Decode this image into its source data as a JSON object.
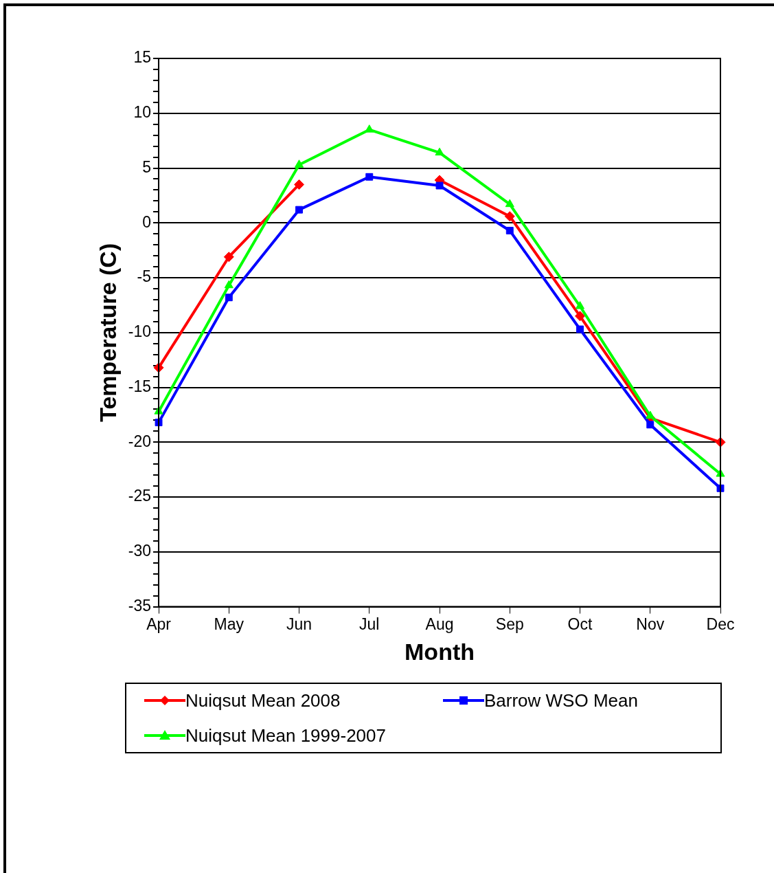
{
  "chart_data": {
    "type": "line",
    "xlabel": "Month",
    "ylabel": "Temperature (C)",
    "categories": [
      "Apr",
      "May",
      "Jun",
      "Jul",
      "Aug",
      "Sep",
      "Oct",
      "Nov",
      "Dec"
    ],
    "series": [
      {
        "name": "Nuiqsut Mean 2008",
        "color": "#ff0000",
        "marker": "diamond",
        "values": [
          -13.2,
          -3.1,
          3.5,
          null,
          3.9,
          0.6,
          -8.5,
          -17.8,
          -20.0
        ]
      },
      {
        "name": "Barrow WSO Mean",
        "color": "#0000ff",
        "marker": "square",
        "values": [
          -18.2,
          -6.8,
          1.2,
          4.2,
          3.4,
          -0.7,
          -9.7,
          -18.4,
          -24.2
        ]
      },
      {
        "name": "Nuiqsut Mean 1999-2007",
        "color": "#00ff00",
        "marker": "triangle",
        "values": [
          -17.2,
          -5.7,
          5.3,
          8.5,
          6.4,
          1.7,
          -7.6,
          -17.6,
          -22.9
        ]
      }
    ],
    "ylim": [
      -35,
      15
    ],
    "yticks": [
      -35,
      {
        "value": -34,
        "label": null
      },
      {
        "value": -33,
        "label": null
      },
      {
        "value": -32,
        "label": null
      },
      {
        "value": -31,
        "label": null
      },
      -30,
      {
        "value": -29,
        "label": null
      },
      {
        "value": -28,
        "label": null
      },
      {
        "value": -27,
        "label": null
      },
      {
        "value": -26,
        "label": null
      },
      -25,
      {
        "value": -24,
        "label": null
      },
      {
        "value": -23,
        "label": null
      },
      {
        "value": -22,
        "label": null
      },
      {
        "value": -21,
        "label": null
      },
      -20,
      {
        "value": -19,
        "label": null
      },
      {
        "value": -18,
        "label": null
      },
      {
        "value": -17,
        "label": null
      },
      {
        "value": -16,
        "label": null
      },
      -15,
      {
        "value": -14,
        "label": null
      },
      {
        "value": -13,
        "label": null
      },
      {
        "value": -12,
        "label": null
      },
      {
        "value": -11,
        "label": null
      },
      -10,
      {
        "value": -9,
        "label": null
      },
      {
        "value": -8,
        "label": null
      },
      {
        "value": -7,
        "label": null
      },
      {
        "value": -6,
        "label": null
      },
      -5,
      {
        "value": -4,
        "label": null
      },
      {
        "value": -3,
        "label": null
      },
      {
        "value": -2,
        "label": null
      },
      {
        "value": -1,
        "label": null
      },
      0,
      {
        "value": 1,
        "label": null
      },
      {
        "value": 2,
        "label": null
      },
      {
        "value": 3,
        "label": null
      },
      {
        "value": 4,
        "label": null
      },
      5,
      {
        "value": 6,
        "label": null
      },
      {
        "value": 7,
        "label": null
      },
      {
        "value": 8,
        "label": null
      },
      {
        "value": 9,
        "label": null
      },
      10,
      {
        "value": 11,
        "label": null
      },
      {
        "value": 12,
        "label": null
      },
      {
        "value": 13,
        "label": null
      },
      {
        "value": 14,
        "label": null
      },
      15
    ],
    "grid": "y",
    "legend": "bottom",
    "line_style": "solid"
  }
}
